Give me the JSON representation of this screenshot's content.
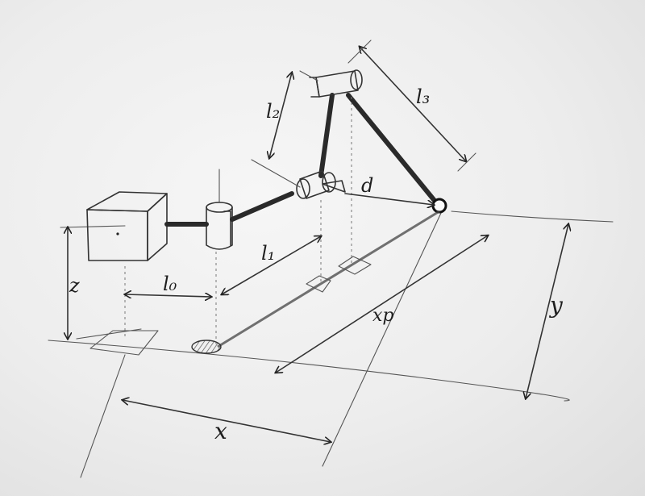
{
  "labels": {
    "l0": "l₀",
    "l1": "l₁",
    "l2": "l₂",
    "l3": "l₃",
    "d": "d",
    "x": "x",
    "y": "y",
    "z": "z",
    "xp": "xp"
  },
  "colors": {
    "pencil": "#2a2a2a",
    "paper": "#eeeeee"
  }
}
